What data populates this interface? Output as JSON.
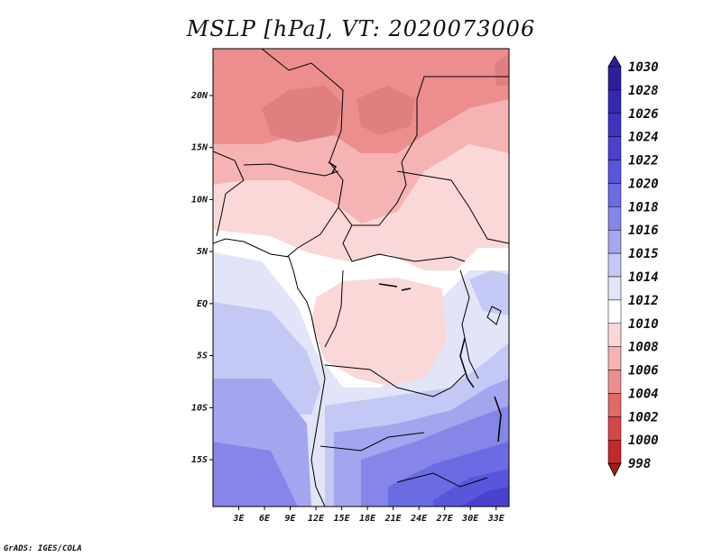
{
  "title": "MSLP [hPa], VT: 2020073006",
  "credit": "GrADS: IGES/COLA",
  "lat_labels": [
    {
      "label": "20N",
      "lat": 20
    },
    {
      "label": "15N",
      "lat": 15
    },
    {
      "label": "10N",
      "lat": 10
    },
    {
      "label": "5N",
      "lat": 5
    },
    {
      "label": "EQ",
      "lat": 0
    },
    {
      "label": "5S",
      "lat": -5
    },
    {
      "label": "10S",
      "lat": -10
    },
    {
      "label": "15S",
      "lat": -15
    }
  ],
  "lon_labels": [
    {
      "label": "3E",
      "lon": 3
    },
    {
      "label": "6E",
      "lon": 6
    },
    {
      "label": "9E",
      "lon": 9
    },
    {
      "label": "12E",
      "lon": 12
    },
    {
      "label": "15E",
      "lon": 15
    },
    {
      "label": "18E",
      "lon": 18
    },
    {
      "label": "21E",
      "lon": 21
    },
    {
      "label": "24E",
      "lon": 24
    },
    {
      "label": "27E",
      "lon": 27
    },
    {
      "label": "30E",
      "lon": 30
    },
    {
      "label": "33E",
      "lon": 33
    }
  ],
  "extent": {
    "lon_min": 0,
    "lon_max": 34.5,
    "lat_min": -19.5,
    "lat_max": 24.5
  },
  "colorbar": {
    "levels": [
      "1030",
      "1028",
      "1026",
      "1024",
      "1022",
      "1020",
      "1018",
      "1016",
      "1015",
      "1014",
      "1012",
      "1010",
      "1008",
      "1006",
      "1004",
      "1002",
      "1000",
      "998"
    ],
    "colors": [
      "#2e1f99",
      "#3528b0",
      "#3e33c2",
      "#4a42cf",
      "#5a56db",
      "#6b6ce3",
      "#8586e8",
      "#a3a6ee",
      "#c4c8f4",
      "#e2e4f8",
      "#ffffff",
      "#fbd8d8",
      "#f5b3b3",
      "#ec8e8e",
      "#e06a6a",
      "#d64848",
      "#c42a2a",
      "#a61a1a"
    ]
  }
}
